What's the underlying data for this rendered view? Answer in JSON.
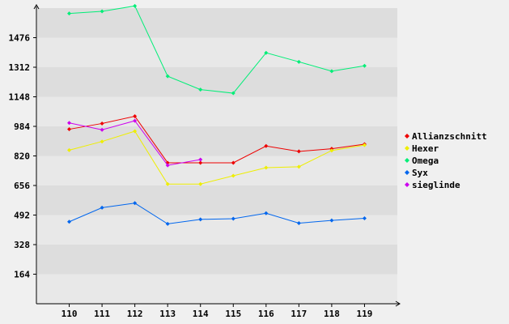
{
  "colors": {
    "background": "#f0f0f0",
    "band_light": "#e8e8e8",
    "band_dark": "#dddddd",
    "axis": "#000000"
  },
  "chart_data": {
    "type": "line",
    "title": "",
    "xlabel": "",
    "ylabel": "",
    "x": [
      "110",
      "111",
      "112",
      "113",
      "114",
      "115",
      "116",
      "117",
      "118",
      "119"
    ],
    "xlim": [
      109,
      120
    ],
    "ylim": [
      0,
      1640
    ],
    "yticks": [
      164,
      328,
      492,
      656,
      820,
      984,
      1148,
      1312,
      1476
    ],
    "grid": "alternating horizontal bands",
    "legend_position": "right",
    "series": [
      {
        "name": "Allianzschnitt",
        "color": "#ee0000",
        "values": [
          968,
          1000,
          1040,
          782,
          782,
          782,
          875,
          845,
          860,
          885
        ]
      },
      {
        "name": "Hexer",
        "color": "#eeee00",
        "values": [
          852,
          900,
          957,
          664,
          664,
          710,
          755,
          760,
          850,
          880
        ]
      },
      {
        "name": "Omega",
        "color": "#00ee77",
        "values": [
          1610,
          1622,
          1652,
          1262,
          1188,
          1168,
          1392,
          1342,
          1290,
          1320
        ]
      },
      {
        "name": "Syx",
        "color": "#0066ee",
        "values": [
          455,
          533,
          558,
          443,
          468,
          472,
          502,
          447,
          462,
          474
        ]
      },
      {
        "name": "sieglinde",
        "color": "#cc00ee",
        "values": [
          1003,
          965,
          1015,
          768,
          800,
          null,
          null,
          null,
          null,
          null
        ]
      }
    ]
  }
}
